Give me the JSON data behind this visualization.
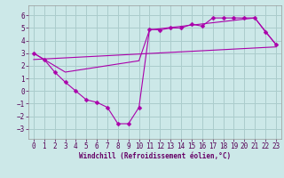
{
  "xlabel": "Windchill (Refroidissement éolien,°C)",
  "bg_color": "#cce8e8",
  "grid_color": "#aacccc",
  "line_color": "#aa00aa",
  "xlim": [
    -0.5,
    23.5
  ],
  "ylim": [
    -3.8,
    6.8
  ],
  "xticks": [
    0,
    1,
    2,
    3,
    4,
    5,
    6,
    7,
    8,
    9,
    10,
    11,
    12,
    13,
    14,
    15,
    16,
    17,
    18,
    19,
    20,
    21,
    22,
    23
  ],
  "yticks": [
    -3,
    -2,
    -1,
    0,
    1,
    2,
    3,
    4,
    5,
    6
  ],
  "line1_x": [
    0,
    1,
    2,
    3,
    4,
    5,
    6,
    7,
    8,
    9,
    10,
    11,
    12,
    13,
    14,
    15,
    16,
    17,
    18,
    19,
    20,
    21,
    22,
    23
  ],
  "line1_y": [
    3.0,
    2.5,
    1.5,
    0.7,
    0.0,
    -0.7,
    -0.9,
    -1.3,
    -2.6,
    -2.6,
    -1.3,
    4.9,
    4.85,
    5.0,
    5.0,
    5.3,
    5.15,
    5.8,
    5.8,
    5.8,
    5.8,
    5.8,
    4.7,
    3.7
  ],
  "line2_x": [
    0,
    3,
    10,
    11,
    21,
    23
  ],
  "line2_y": [
    3.0,
    1.5,
    2.4,
    4.85,
    5.8,
    3.7
  ],
  "line3_x": [
    0,
    23
  ],
  "line3_y": [
    2.5,
    3.5
  ],
  "tick_fontsize": 5.5,
  "xlabel_fontsize": 5.5
}
